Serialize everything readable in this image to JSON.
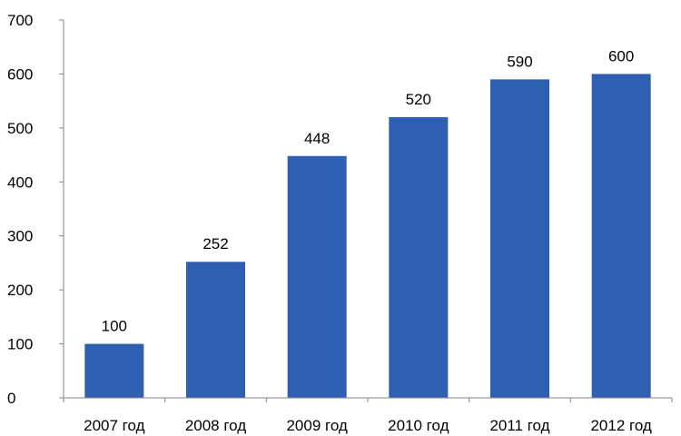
{
  "chart_data": {
    "type": "bar",
    "title": "",
    "xlabel": "",
    "ylabel": "",
    "categories": [
      "2007 год",
      "2008 год",
      "2009 год",
      "2010 год",
      "2011 год",
      "2012 год"
    ],
    "values": [
      100,
      252,
      448,
      520,
      590,
      600
    ],
    "data_labels": [
      "100",
      "252",
      "448",
      "520",
      "590",
      "600"
    ],
    "ylim": [
      0,
      700
    ],
    "y_ticks": [
      0,
      100,
      200,
      300,
      400,
      500,
      600,
      700
    ],
    "y_tick_labels": [
      "0",
      "100",
      "200",
      "300",
      "400",
      "500",
      "600",
      "700"
    ],
    "grid": false,
    "legend": "none",
    "bar_color": "#2E5FB0",
    "axis_color": "#868686"
  }
}
